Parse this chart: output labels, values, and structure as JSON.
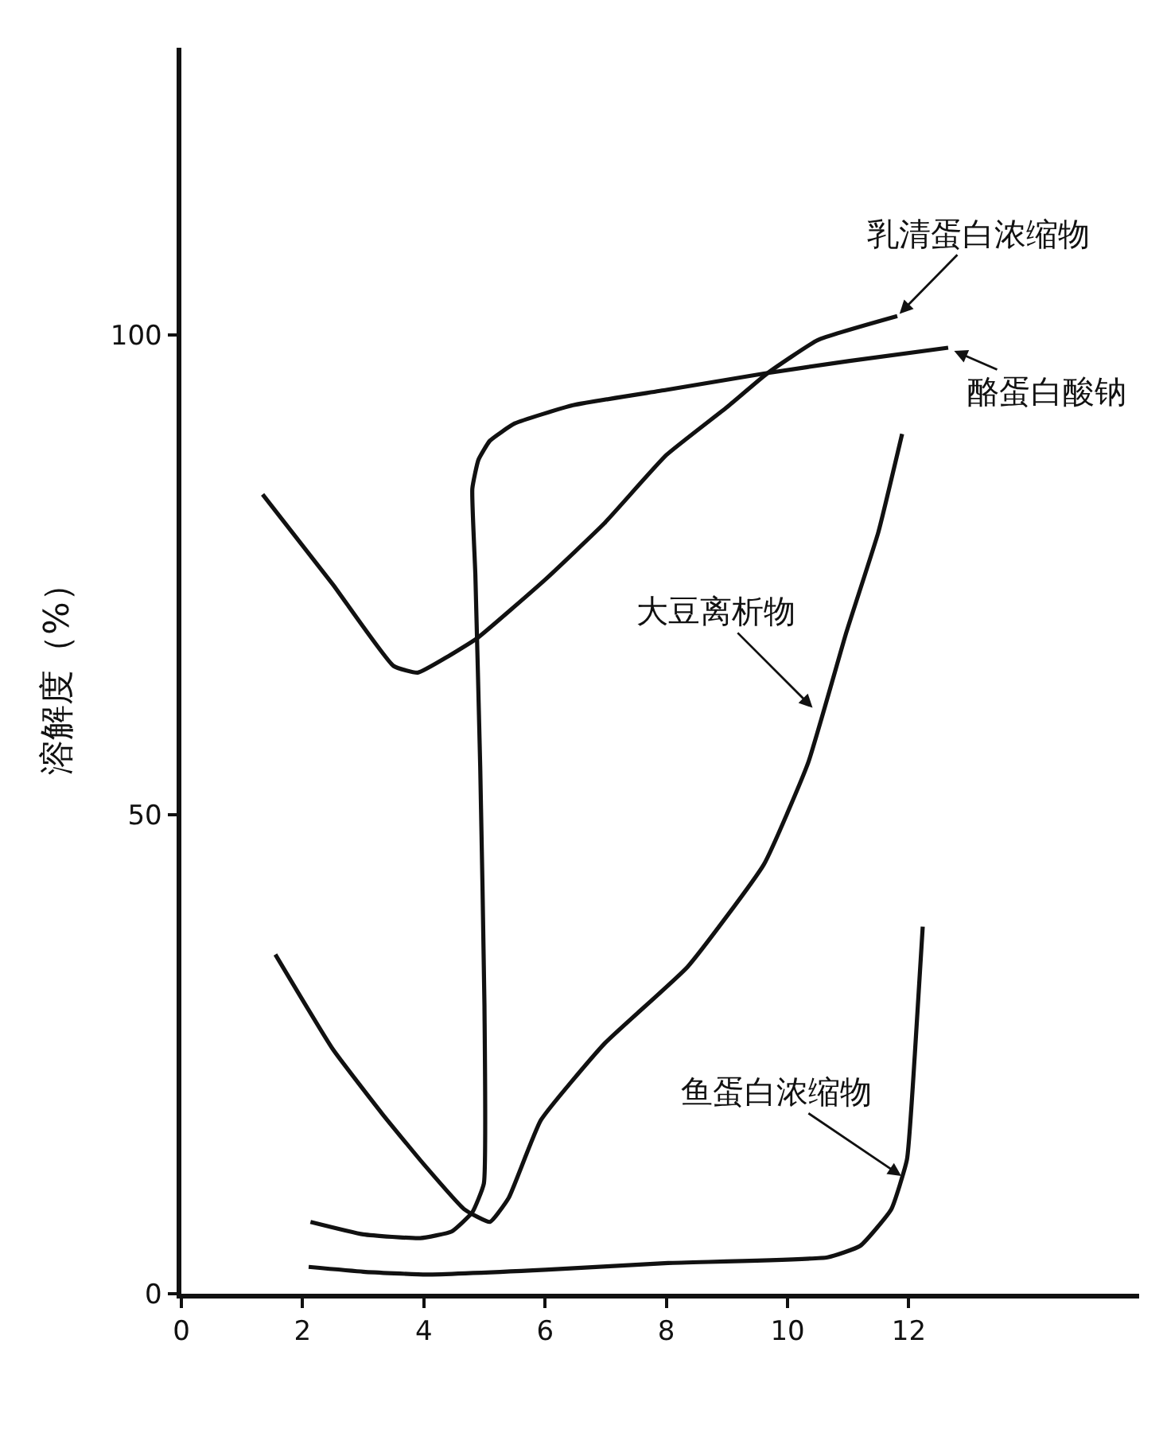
{
  "chart_data": {
    "type": "line",
    "ylabel": "溶解度（%）",
    "xlim": [
      0,
      15.8
    ],
    "ylim": [
      0,
      130
    ],
    "xticks": [
      0,
      2,
      4,
      6,
      8,
      10,
      12
    ],
    "yticks": [
      0,
      50,
      100
    ],
    "grid": false,
    "marker": "none",
    "line_style": "solid",
    "series": [
      {
        "color": "#111111",
        "x": [
          1.34,
          2.5,
          3.5,
          3.9,
          4.4,
          4.88,
          6,
          6.98,
          8,
          9,
          9.66,
          10.5,
          11.81
        ],
        "values": [
          83.4,
          74,
          65.5,
          64.8,
          66.5,
          68.4,
          74.5,
          80.4,
          87.5,
          92.5,
          96,
          99.5,
          102
        ]
      },
      {
        "color": "#111111",
        "x": [
          2.13,
          3,
          3.94,
          4.46,
          4.8,
          4.99,
          5,
          4.93,
          4.85,
          4.8,
          4.9,
          5.09,
          5.5,
          6.46,
          8,
          9.61,
          11,
          12.65
        ],
        "values": [
          7.5,
          6.2,
          5.8,
          6.5,
          8.5,
          11.5,
          30,
          55,
          75,
          84,
          87,
          89,
          90.8,
          92.7,
          94.3,
          96,
          97.3,
          98.7
        ]
      },
      {
        "color": "#111111",
        "x": [
          1.55,
          2.5,
          3.31,
          4,
          4.67,
          5.09,
          5.4,
          5.93,
          6.98,
          8.35,
          9.61,
          10.34,
          10.97,
          11.5,
          11.89
        ],
        "values": [
          35.4,
          25.5,
          18.8,
          13.5,
          8.8,
          7.5,
          10,
          18.1,
          26.1,
          34.1,
          44.8,
          55.4,
          69,
          79.5,
          89.7
        ]
      },
      {
        "color": "#111111",
        "x": [
          2.1,
          3,
          4.04,
          6,
          8.03,
          10.66,
          11.2,
          11.71,
          11.97,
          12.1,
          12.23
        ],
        "values": [
          2.8,
          2.3,
          2,
          2.5,
          3.2,
          3.8,
          5,
          8.8,
          14,
          25,
          38.3
        ]
      }
    ],
    "annotations": [
      {
        "text": "乳清蛋白浓缩物",
        "x": 11.81,
        "y": 102
      },
      {
        "text": "酪蛋白酸钠",
        "x": 12.7,
        "y": 98.5
      },
      {
        "text": "大豆离析物",
        "x": 10.45,
        "y": 60.9
      },
      {
        "text": "鱼蛋白浓缩物",
        "x": 11.92,
        "y": 12.1
      }
    ]
  }
}
